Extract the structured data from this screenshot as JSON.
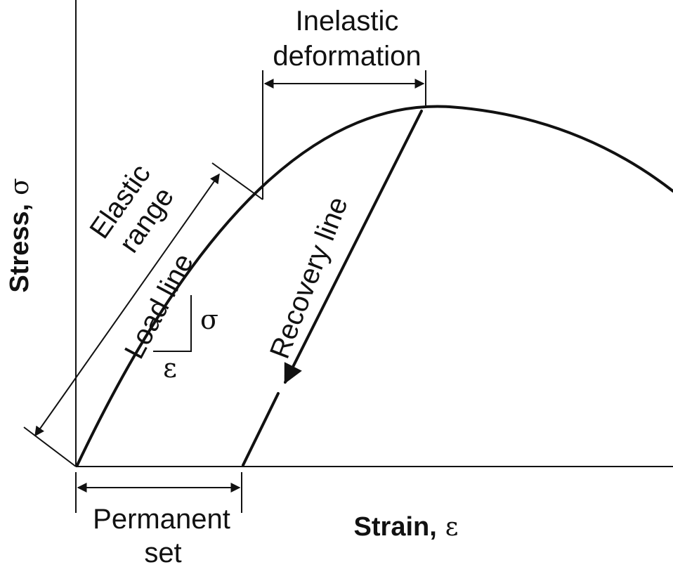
{
  "axes": {
    "y_label": "Stress,",
    "y_symbol": "σ",
    "x_label": "Strain,",
    "x_symbol": "ε"
  },
  "annotations": {
    "inelastic_line1": "Inelastic",
    "inelastic_line2": "deformation",
    "elastic_line1": "Elastic",
    "elastic_line2": "range",
    "load_line": "Load line",
    "recovery_line": "Recovery line",
    "permanent_line1": "Permanent",
    "permanent_line2": "set",
    "slope_sigma": "σ",
    "slope_epsilon": "ε"
  },
  "colors": {
    "ink": "#111111",
    "background": "#ffffff"
  }
}
